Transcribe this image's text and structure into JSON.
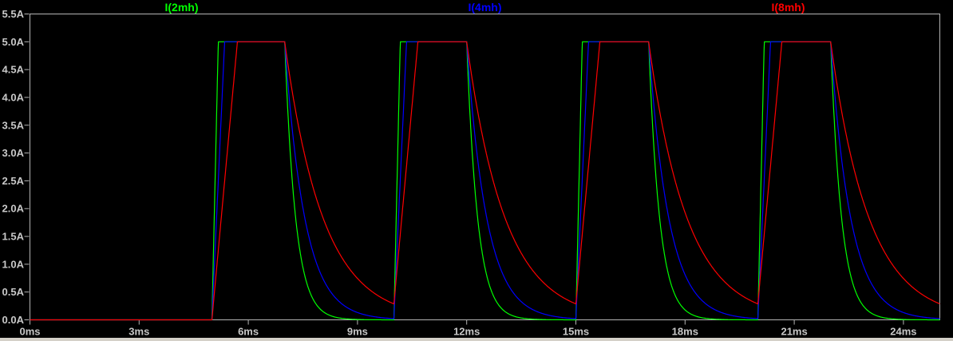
{
  "window": {
    "bottom_edge_color": "#d4d0c8"
  },
  "colors": {
    "background": "#000000",
    "plot_border": "#b4b4b4",
    "tick": "#b4b4b4",
    "axis_text": "#c8c8c8"
  },
  "chart_data": {
    "type": "line",
    "title": "",
    "xlabel": "",
    "ylabel": "",
    "grid": false,
    "legend_position": "top, evenly spaced over plot",
    "x_axis": {
      "unit": "ms",
      "min": 0,
      "max": 25,
      "tick_step": 3,
      "tick_labels": [
        "0ms",
        "3ms",
        "6ms",
        "9ms",
        "12ms",
        "15ms",
        "18ms",
        "21ms",
        "24ms"
      ]
    },
    "y_axis": {
      "unit": "A",
      "min": 0,
      "max": 5.5,
      "tick_step": 0.5,
      "tick_labels": [
        "0.0A",
        "0.5A",
        "1.0A",
        "1.5A",
        "2.0A",
        "2.5A",
        "3.0A",
        "3.5A",
        "4.0A",
        "4.5A",
        "5.0A",
        "5.5A"
      ]
    },
    "series": [
      {
        "name": "I(2mh)",
        "color": "#00ff00",
        "rise_time_ms": 0.175,
        "decay_tau_ms": 0.3
      },
      {
        "name": "I(4mh)",
        "color": "#0000ff",
        "rise_time_ms": 0.35,
        "decay_tau_ms": 0.55
      },
      {
        "name": "I(8mh)",
        "color": "#ff0000",
        "rise_time_ms": 0.7,
        "decay_tau_ms": 1.05
      }
    ],
    "waveform": {
      "baseline_a": 0.0,
      "peak_current_a": 5.0,
      "pulses_on_ms": [
        [
          5,
          7
        ],
        [
          10,
          12
        ],
        [
          15,
          17
        ],
        [
          20,
          22
        ]
      ],
      "notes": "All traces sit at 0A until 5ms. During each 2ms on-pulse the current ramps linearly to 5.0A (smaller inductance = steeper ramp) and holds flat at 5.0A. During off time the current decays exponentially (larger inductance = slower decay). The 8mH trace still reads about 0.29A when the next pulse begins; the 4mH trace about 0.02A; the 2mH trace is essentially 0A."
    }
  }
}
